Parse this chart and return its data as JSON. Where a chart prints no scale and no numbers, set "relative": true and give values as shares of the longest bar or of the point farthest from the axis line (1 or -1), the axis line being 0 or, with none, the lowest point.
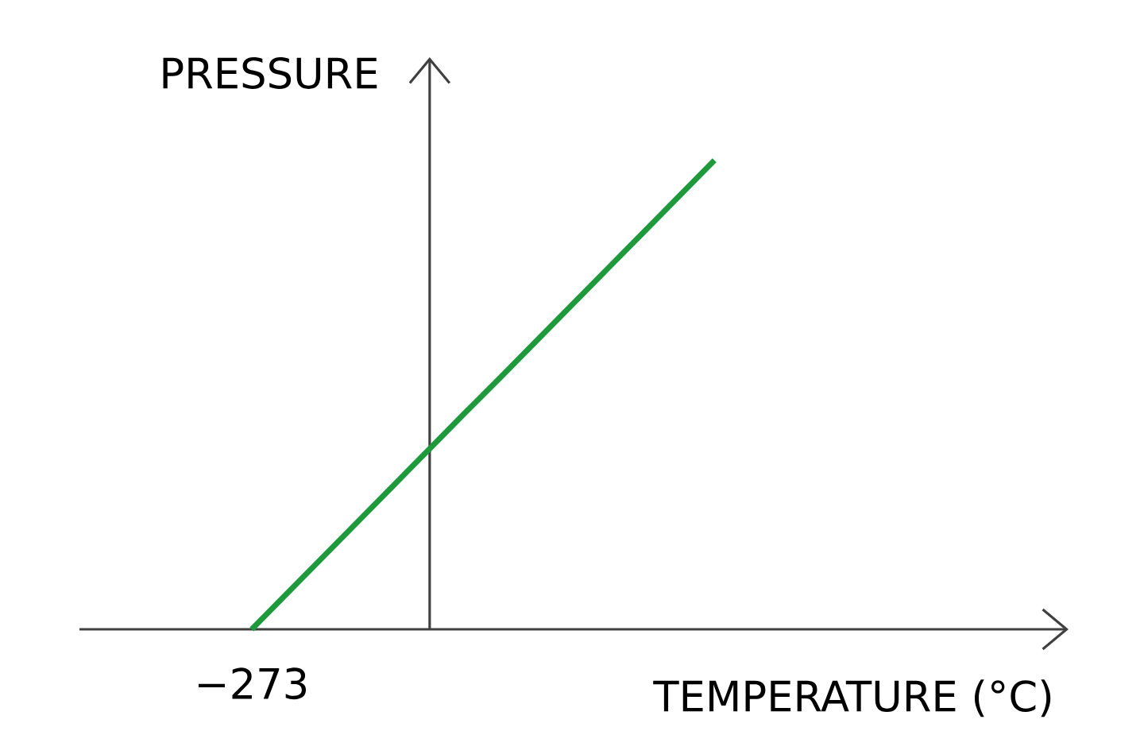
{
  "chart_data": {
    "type": "line",
    "xlabel": "TEMPERATURE (°C)",
    "ylabel": "PRESSURE",
    "relative": true,
    "categories": [
      null,
      null,
      null,
      null,
      null,
      null,
      null,
      null,
      null,
      null,
      null,
      null,
      null,
      null
    ],
    "series": [
      {
        "color": "#1e9a3c",
        "values": [
          0,
          0.077,
          0.154,
          0.231,
          0.308,
          0.385,
          0.462,
          0.538,
          0.615,
          0.692,
          0.769,
          0.846,
          0.923,
          1
        ]
      }
    ],
    "annotations": [
      "−273"
    ],
    "marker": "none",
    "line_style": "solid"
  }
}
